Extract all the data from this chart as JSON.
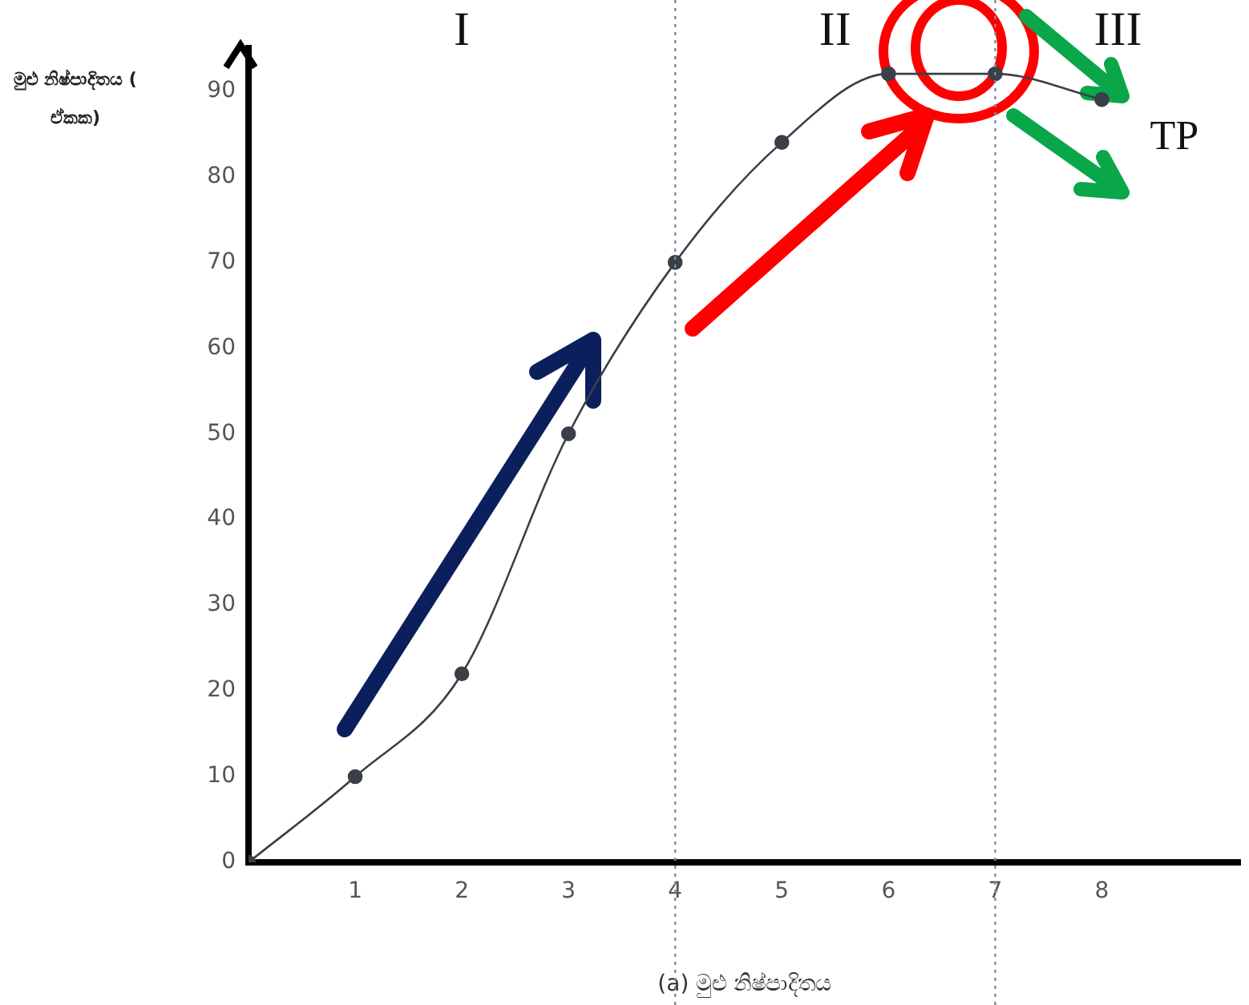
{
  "chart_data": {
    "type": "line",
    "xlabel": "(a) මුළු නිෂ්පාදිතය",
    "ylabel": "මුළු නිෂ්පාදිතය ( ඒකක)",
    "x": [
      0,
      1,
      2,
      3,
      4,
      5,
      6,
      7,
      8
    ],
    "series": [
      {
        "name": "TP",
        "color": "#3a3f48",
        "values": [
          0,
          10,
          22,
          50,
          70,
          84,
          92,
          92,
          89
        ]
      }
    ],
    "xlim": [
      0,
      9.3
    ],
    "xticks": [
      1,
      2,
      3,
      4,
      5,
      6,
      7,
      8
    ],
    "ylim": [
      0,
      95
    ],
    "yticks": [
      0,
      10,
      20,
      30,
      40,
      50,
      60,
      70,
      80,
      90
    ],
    "ref_lines": [
      {
        "axis": "x",
        "value": 4,
        "color": "#7d8da3",
        "line_style": "dotted"
      },
      {
        "axis": "x",
        "value": 7,
        "color": "#7d8da3",
        "line_style": "dotted"
      }
    ],
    "annotations": [
      "I",
      "II",
      "III"
    ],
    "marker": "circle",
    "line_style": "solid",
    "legend": false
  }
}
